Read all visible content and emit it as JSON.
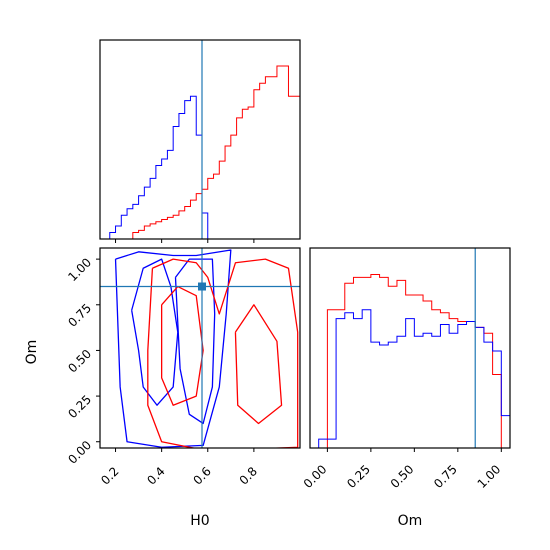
{
  "colors": {
    "series_a": "#0000ff",
    "series_b": "#ff0000",
    "truth": "#1f77b4"
  },
  "axis_labels": {
    "h0": "H0",
    "om": "Om"
  },
  "chart_data": [
    {
      "type": "histogram",
      "panel": "H0 marginal",
      "xlim": [
        0.15,
        1.0
      ],
      "bins": [
        0.15,
        0.175,
        0.2,
        0.225,
        0.25,
        0.275,
        0.3,
        0.325,
        0.35,
        0.375,
        0.4,
        0.425,
        0.45,
        0.475,
        0.5,
        0.525,
        0.55,
        0.575,
        0.6,
        0.625,
        0.65,
        0.675,
        0.7,
        0.725,
        0.75,
        0.775,
        0.8,
        0.825,
        0.85,
        0.875,
        0.9,
        0.925,
        0.95,
        0.975,
        1.0
      ],
      "series": [
        {
          "color": "blue",
          "values": [
            0,
            0.3,
            0.6,
            1.1,
            1.4,
            1.6,
            2.0,
            2.4,
            2.8,
            3.4,
            3.7,
            4.1,
            5.2,
            5.8,
            6.4,
            6.6,
            4.8,
            1.2,
            0,
            0,
            0,
            0,
            0,
            0,
            0,
            0,
            0,
            0,
            0,
            0,
            0,
            0,
            0,
            0
          ]
        },
        {
          "color": "red",
          "values": [
            0,
            0,
            0,
            0,
            0,
            0.3,
            0.4,
            0.6,
            0.7,
            0.8,
            0.9,
            1.0,
            1.1,
            1.3,
            1.5,
            1.8,
            2.1,
            2.3,
            2.8,
            3.0,
            3.6,
            4.3,
            4.8,
            5.6,
            6.0,
            6.1,
            6.9,
            7.2,
            7.5,
            7.5,
            8.0,
            8.0,
            6.6,
            6.6
          ]
        }
      ],
      "truth_x": 0.575
    },
    {
      "type": "histogram",
      "panel": "Om marginal",
      "xlim": [
        -0.1,
        1.05
      ],
      "xticks": [
        "0.00",
        "0.25",
        "0.50",
        "0.75",
        "1.00"
      ],
      "bins": [
        -0.05,
        0.0,
        0.05,
        0.1,
        0.15,
        0.2,
        0.25,
        0.3,
        0.35,
        0.4,
        0.45,
        0.5,
        0.55,
        0.6,
        0.65,
        0.7,
        0.75,
        0.8,
        0.85,
        0.9,
        0.95,
        1.0,
        1.05
      ],
      "series": [
        {
          "color": "red",
          "values": [
            0,
            4.7,
            4.7,
            5.6,
            5.8,
            5.8,
            5.9,
            5.8,
            5.5,
            5.7,
            5.2,
            5.2,
            5.0,
            4.7,
            4.6,
            4.4,
            4.3,
            4.3,
            4.1,
            3.9,
            2.5,
            0
          ]
        },
        {
          "color": "blue",
          "values": [
            0.3,
            0.3,
            4.4,
            4.6,
            4.4,
            4.7,
            3.6,
            3.5,
            3.6,
            3.8,
            4.4,
            3.8,
            3.9,
            3.8,
            4.2,
            3.9,
            4.2,
            4.3,
            4.1,
            3.6,
            3.3,
            1.1
          ]
        }
      ],
      "truth_x": 0.85
    },
    {
      "type": "contour",
      "panel": "Om vs H0",
      "xlabel": "H0",
      "ylabel": "Om",
      "xlim": [
        0.15,
        1.0
      ],
      "ylim": [
        -0.1,
        1.05
      ],
      "xticks": [
        "0.2",
        "0.4",
        "0.6",
        "0.8"
      ],
      "yticks": [
        "0.00",
        "0.25",
        "0.50",
        "0.75",
        "1.00"
      ],
      "truth": [
        0.575,
        0.85
      ],
      "series": [
        {
          "color": "blue",
          "contours": [
            [
              [
                0.2,
                1.0
              ],
              [
                0.22,
                0.3
              ],
              [
                0.25,
                0.0
              ],
              [
                0.4,
                -0.03
              ],
              [
                0.58,
                -0.02
              ],
              [
                0.65,
                0.3
              ],
              [
                0.68,
                0.7
              ],
              [
                0.7,
                1.05
              ],
              [
                0.55,
                1.02
              ],
              [
                0.45,
                1.02
              ],
              [
                0.3,
                1.04
              ],
              [
                0.2,
                1.0
              ]
            ],
            [
              [
                0.27,
                0.72
              ],
              [
                0.3,
                0.5
              ],
              [
                0.32,
                0.3
              ],
              [
                0.38,
                0.2
              ],
              [
                0.45,
                0.3
              ],
              [
                0.47,
                0.6
              ],
              [
                0.44,
                0.85
              ],
              [
                0.4,
                1.0
              ],
              [
                0.32,
                0.95
              ],
              [
                0.27,
                0.72
              ]
            ],
            [
              [
                0.46,
                0.9
              ],
              [
                0.48,
                0.4
              ],
              [
                0.52,
                0.15
              ],
              [
                0.58,
                0.1
              ],
              [
                0.62,
                0.3
              ],
              [
                0.63,
                0.7
              ],
              [
                0.62,
                1.0
              ],
              [
                0.52,
                1.0
              ],
              [
                0.46,
                0.9
              ]
            ]
          ]
        },
        {
          "color": "red",
          "contours": [
            [
              [
                0.36,
                0.95
              ],
              [
                0.34,
                0.5
              ],
              [
                0.34,
                0.2
              ],
              [
                0.4,
                0.0
              ],
              [
                0.6,
                -0.05
              ],
              [
                0.8,
                -0.04
              ],
              [
                0.99,
                -0.03
              ],
              [
                0.99,
                0.6
              ],
              [
                0.95,
                0.95
              ],
              [
                0.85,
                1.0
              ],
              [
                0.72,
                0.98
              ],
              [
                0.65,
                0.7
              ],
              [
                0.6,
                0.9
              ],
              [
                0.55,
                0.98
              ],
              [
                0.45,
                1.0
              ],
              [
                0.36,
                0.95
              ]
            ],
            [
              [
                0.4,
                0.75
              ],
              [
                0.4,
                0.35
              ],
              [
                0.45,
                0.2
              ],
              [
                0.55,
                0.25
              ],
              [
                0.58,
                0.5
              ],
              [
                0.55,
                0.8
              ],
              [
                0.47,
                0.85
              ],
              [
                0.4,
                0.75
              ]
            ],
            [
              [
                0.72,
                0.6
              ],
              [
                0.73,
                0.2
              ],
              [
                0.82,
                0.1
              ],
              [
                0.92,
                0.2
              ],
              [
                0.9,
                0.55
              ],
              [
                0.8,
                0.75
              ],
              [
                0.72,
                0.6
              ]
            ]
          ]
        }
      ]
    }
  ]
}
